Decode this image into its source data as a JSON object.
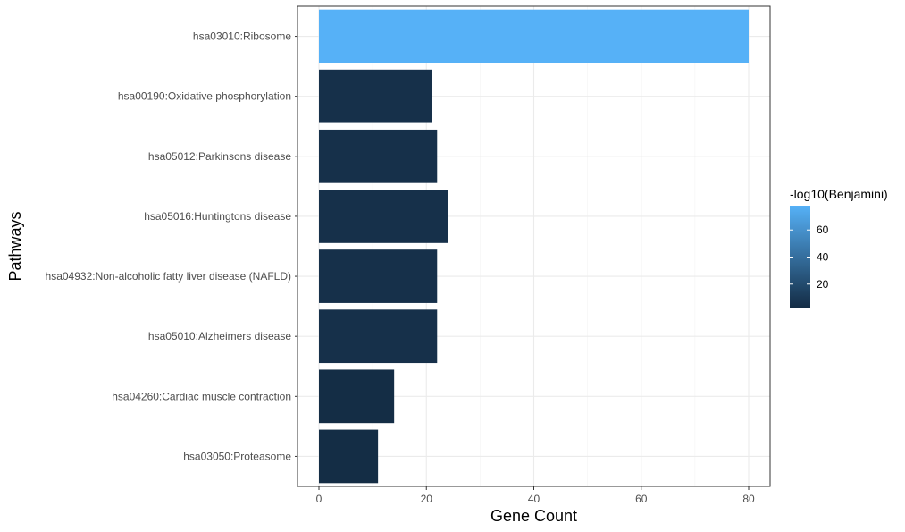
{
  "chart_data": {
    "type": "bar",
    "orientation": "horizontal",
    "title": "",
    "xlabel": "Gene Count",
    "ylabel": "Pathways",
    "xlim": [
      0,
      80
    ],
    "xticks": [
      0,
      20,
      40,
      60,
      80
    ],
    "grid": true,
    "categories": [
      "hsa03010:Ribosome",
      "hsa00190:Oxidative phosphorylation",
      "hsa05012:Parkinsons disease",
      "hsa05016:Huntingtons disease",
      "hsa04932:Non-alcoholic fatty liver disease (NAFLD)",
      "hsa05010:Alzheimers disease",
      "hsa04260:Cardiac muscle contraction",
      "hsa03050:Proteasome"
    ],
    "values": [
      80,
      21,
      22,
      24,
      22,
      22,
      14,
      11
    ],
    "color_values": [
      78,
      5,
      5,
      5,
      5,
      5,
      3,
      3
    ],
    "legend": {
      "title": "-log10(Benjamini)",
      "position": "right",
      "ticks": [
        20,
        40,
        60
      ],
      "range": [
        2,
        78
      ],
      "low_color": "#132B43",
      "high_color": "#56B1F7"
    }
  }
}
